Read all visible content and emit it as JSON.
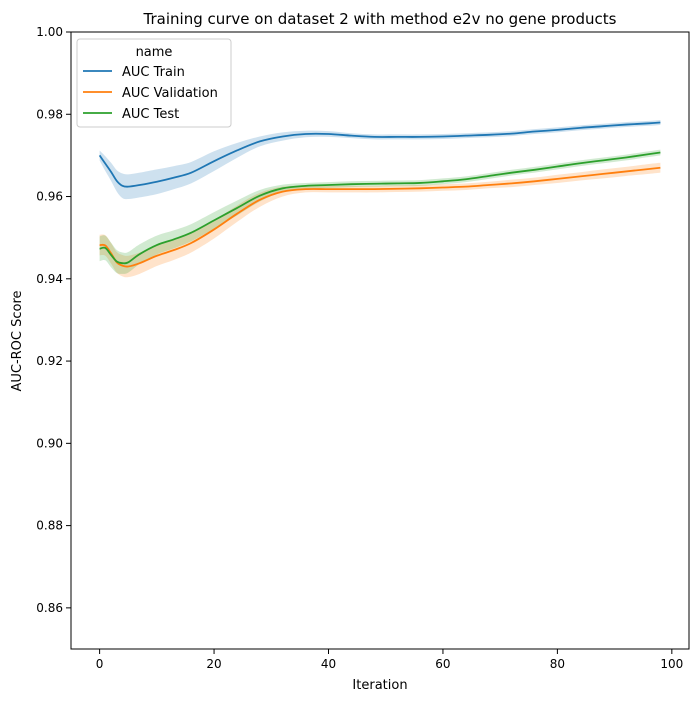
{
  "chart_data": {
    "type": "line",
    "title": "Training curve on dataset 2 with method e2v no gene products",
    "xlabel": "Iteration",
    "ylabel": "AUC-ROC Score",
    "xlim": [
      -5,
      103
    ],
    "ylim": [
      0.85,
      1.0
    ],
    "x_ticks": [
      0,
      20,
      40,
      60,
      80,
      100
    ],
    "y_ticks": [
      0.86,
      0.88,
      0.9,
      0.92,
      0.94,
      0.96,
      0.98,
      1.0
    ],
    "x_tick_labels": [
      "0",
      "20",
      "40",
      "60",
      "80",
      "100"
    ],
    "y_tick_labels": [
      "0.86",
      "0.88",
      "0.90",
      "0.92",
      "0.94",
      "0.96",
      "0.98",
      "1.00"
    ],
    "grid": false,
    "legend": {
      "title": "name",
      "placement": "top-left"
    },
    "series": [
      {
        "name": "AUC Train",
        "color": "#1f77b4",
        "points": [
          [
            0,
            0.97
          ],
          [
            1,
            0.968
          ],
          [
            2,
            0.966
          ],
          [
            3,
            0.9638
          ],
          [
            4,
            0.9626
          ],
          [
            5,
            0.9624
          ],
          [
            7,
            0.9628
          ],
          [
            10,
            0.9636
          ],
          [
            13,
            0.9646
          ],
          [
            16,
            0.9658
          ],
          [
            20,
            0.9686
          ],
          [
            24,
            0.9712
          ],
          [
            28,
            0.9734
          ],
          [
            32,
            0.9746
          ],
          [
            36,
            0.9752
          ],
          [
            40,
            0.9752
          ],
          [
            44,
            0.9748
          ],
          [
            48,
            0.9745
          ],
          [
            52,
            0.9745
          ],
          [
            56,
            0.9745
          ],
          [
            60,
            0.9746
          ],
          [
            64,
            0.9748
          ],
          [
            68,
            0.975
          ],
          [
            72,
            0.9753
          ],
          [
            76,
            0.9758
          ],
          [
            80,
            0.9762
          ],
          [
            84,
            0.9767
          ],
          [
            88,
            0.9771
          ],
          [
            92,
            0.9775
          ],
          [
            96,
            0.9778
          ],
          [
            98,
            0.978
          ]
        ],
        "band": [
          0.0012,
          0.0018,
          0.0022,
          0.0026,
          0.003,
          0.003,
          0.003,
          0.003,
          0.0028,
          0.0026,
          0.0024,
          0.0018,
          0.0012,
          0.001,
          0.0008,
          0.0007,
          0.0006,
          0.0006,
          0.0006,
          0.0006,
          0.0006,
          0.0006,
          0.0006,
          0.0006,
          0.0006,
          0.0006,
          0.0006,
          0.0006,
          0.0006,
          0.0006,
          0.0006
        ]
      },
      {
        "name": "AUC Validation",
        "color": "#ff7f0e",
        "points": [
          [
            0,
            0.9482
          ],
          [
            1,
            0.9481
          ],
          [
            2,
            0.9462
          ],
          [
            3,
            0.944
          ],
          [
            4,
            0.9432
          ],
          [
            5,
            0.943
          ],
          [
            7,
            0.9438
          ],
          [
            10,
            0.9456
          ],
          [
            13,
            0.947
          ],
          [
            16,
            0.9487
          ],
          [
            20,
            0.952
          ],
          [
            24,
            0.9558
          ],
          [
            28,
            0.9592
          ],
          [
            32,
            0.9612
          ],
          [
            36,
            0.9618
          ],
          [
            40,
            0.9618
          ],
          [
            44,
            0.9618
          ],
          [
            48,
            0.9618
          ],
          [
            52,
            0.9619
          ],
          [
            56,
            0.962
          ],
          [
            60,
            0.9622
          ],
          [
            64,
            0.9624
          ],
          [
            68,
            0.9628
          ],
          [
            72,
            0.9632
          ],
          [
            76,
            0.9637
          ],
          [
            80,
            0.9643
          ],
          [
            84,
            0.9649
          ],
          [
            88,
            0.9655
          ],
          [
            92,
            0.9661
          ],
          [
            96,
            0.9667
          ],
          [
            98,
            0.967
          ]
        ],
        "band": [
          0.0025,
          0.0025,
          0.0025,
          0.0025,
          0.0026,
          0.0026,
          0.0026,
          0.0025,
          0.0024,
          0.0023,
          0.0022,
          0.002,
          0.0017,
          0.0012,
          0.0008,
          0.0008,
          0.0008,
          0.0008,
          0.0008,
          0.0008,
          0.0008,
          0.0008,
          0.0008,
          0.0009,
          0.0009,
          0.001,
          0.001,
          0.0011,
          0.0011,
          0.0012,
          0.0012
        ]
      },
      {
        "name": "AUC Test",
        "color": "#2ca02c",
        "points": [
          [
            0,
            0.9473
          ],
          [
            1,
            0.9475
          ],
          [
            2,
            0.9458
          ],
          [
            3,
            0.9442
          ],
          [
            4,
            0.9438
          ],
          [
            5,
            0.944
          ],
          [
            7,
            0.946
          ],
          [
            10,
            0.9482
          ],
          [
            13,
            0.9496
          ],
          [
            16,
            0.9512
          ],
          [
            20,
            0.9542
          ],
          [
            24,
            0.9572
          ],
          [
            28,
            0.9602
          ],
          [
            32,
            0.962
          ],
          [
            36,
            0.9626
          ],
          [
            40,
            0.9628
          ],
          [
            44,
            0.963
          ],
          [
            48,
            0.9631
          ],
          [
            52,
            0.9632
          ],
          [
            56,
            0.9633
          ],
          [
            60,
            0.9637
          ],
          [
            64,
            0.9642
          ],
          [
            68,
            0.965
          ],
          [
            72,
            0.9658
          ],
          [
            76,
            0.9665
          ],
          [
            80,
            0.9673
          ],
          [
            84,
            0.9681
          ],
          [
            88,
            0.9688
          ],
          [
            92,
            0.9695
          ],
          [
            96,
            0.9703
          ],
          [
            98,
            0.9707
          ]
        ],
        "band": [
          0.003,
          0.003,
          0.003,
          0.0028,
          0.0026,
          0.0025,
          0.0024,
          0.0023,
          0.0022,
          0.0021,
          0.002,
          0.0018,
          0.0014,
          0.0009,
          0.0007,
          0.0007,
          0.0007,
          0.0007,
          0.0007,
          0.0007,
          0.0007,
          0.0007,
          0.0007,
          0.0007,
          0.0007,
          0.0007,
          0.0007,
          0.0007,
          0.0007,
          0.0007,
          0.0007
        ]
      }
    ]
  }
}
